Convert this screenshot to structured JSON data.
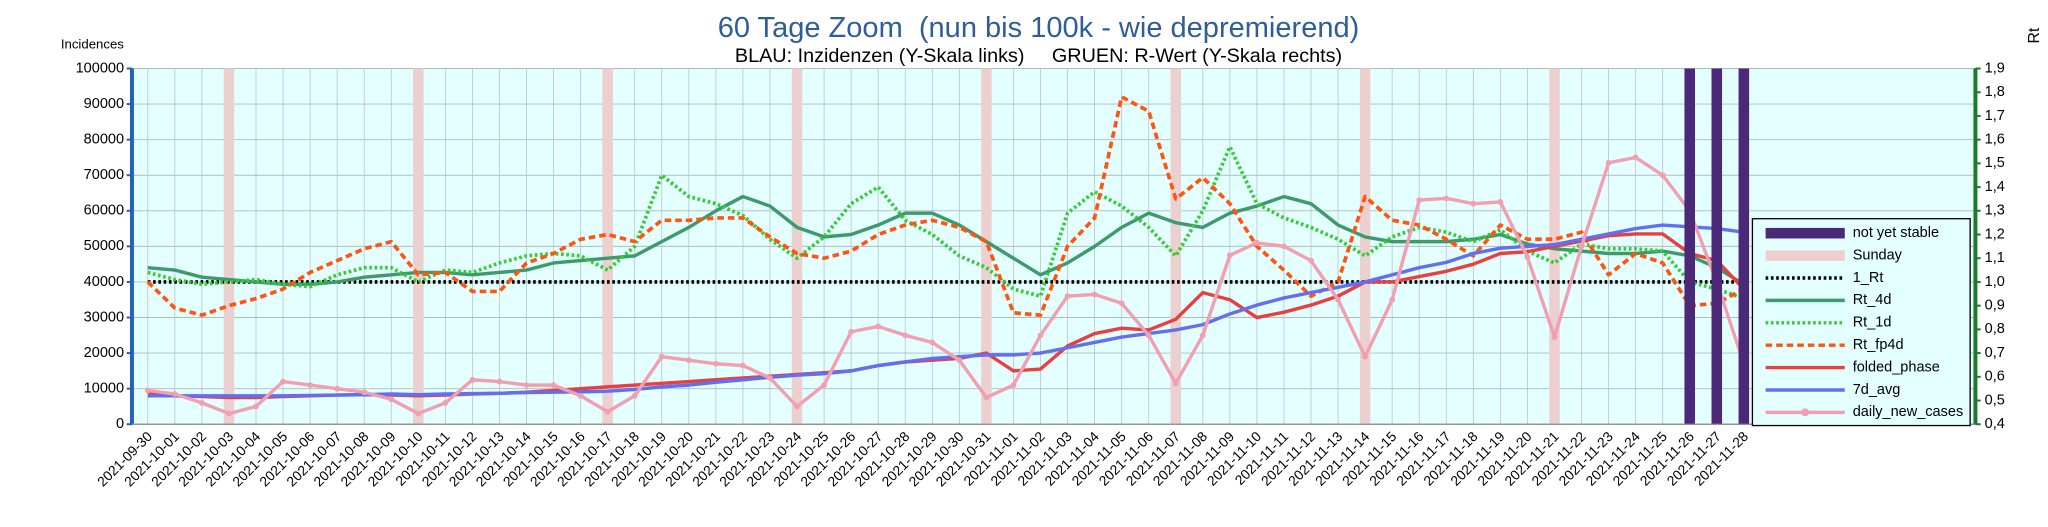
{
  "chart_data": {
    "type": "line",
    "title": "60 Tage Zoom  (nun bis 100k - wie depremierend)",
    "subtitle": "BLAU: Inzidenzen (Y-Skala links)     GRUEN: R-Wert (Y-Skala rechts)",
    "y_label": "Incidences",
    "y2_label": "Rt",
    "categories": [
      "2021-09-30",
      "2021-10-01",
      "2021-10-02",
      "2021-10-03",
      "2021-10-04",
      "2021-10-05",
      "2021-10-06",
      "2021-10-07",
      "2021-10-08",
      "2021-10-09",
      "2021-10-10",
      "2021-10-11",
      "2021-10-12",
      "2021-10-13",
      "2021-10-14",
      "2021-10-15",
      "2021-10-16",
      "2021-10-17",
      "2021-10-18",
      "2021-10-19",
      "2021-10-20",
      "2021-10-21",
      "2021-10-22",
      "2021-10-23",
      "2021-10-24",
      "2021-10-25",
      "2021-10-26",
      "2021-10-27",
      "2021-10-28",
      "2021-10-29",
      "2021-10-30",
      "2021-10-31",
      "2021-11-01",
      "2021-11-02",
      "2021-11-03",
      "2021-11-04",
      "2021-11-05",
      "2021-11-06",
      "2021-11-07",
      "2021-11-08",
      "2021-11-09",
      "2021-11-10",
      "2021-11-11",
      "2021-11-12",
      "2021-11-13",
      "2021-11-14",
      "2021-11-15",
      "2021-11-16",
      "2021-11-17",
      "2021-11-18",
      "2021-11-19",
      "2021-11-20",
      "2021-11-21",
      "2021-11-22",
      "2021-11-23",
      "2021-11-24",
      "2021-11-25",
      "2021-11-26",
      "2021-11-27",
      "2021-11-28"
    ],
    "ylim": [
      0,
      100000
    ],
    "yticks": [
      0,
      10000,
      20000,
      30000,
      40000,
      50000,
      60000,
      70000,
      80000,
      90000,
      100000
    ],
    "y2lim": [
      0.4,
      1.9
    ],
    "y2ticks": [
      {
        "value": 0.4,
        "label": "0,4"
      },
      {
        "value": 0.5,
        "label": "0,5"
      },
      {
        "value": 0.6,
        "label": "0,6"
      },
      {
        "value": 0.7,
        "label": "0,7"
      },
      {
        "value": 0.8,
        "label": "0,8"
      },
      {
        "value": 0.9,
        "label": "0,9"
      },
      {
        "value": 1.0,
        "label": "1,0"
      },
      {
        "value": 1.1,
        "label": "1,1"
      },
      {
        "value": 1.2,
        "label": "1,2"
      },
      {
        "value": 1.3,
        "label": "1,3"
      },
      {
        "value": 1.4,
        "label": "1,4"
      },
      {
        "value": 1.5,
        "label": "1,5"
      },
      {
        "value": 1.6,
        "label": "1,6"
      },
      {
        "value": 1.7,
        "label": "1,7"
      },
      {
        "value": 1.8,
        "label": "1,8"
      },
      {
        "value": 1.9,
        "label": "1,9"
      }
    ],
    "grid": true,
    "legend": "right",
    "series": [
      {
        "name": "not yet stable",
        "type": "bar",
        "color": "#4b2878",
        "values": [
          null,
          null,
          null,
          null,
          null,
          null,
          null,
          null,
          null,
          null,
          null,
          null,
          null,
          null,
          null,
          null,
          null,
          null,
          null,
          null,
          null,
          null,
          null,
          null,
          null,
          null,
          null,
          null,
          null,
          null,
          null,
          null,
          null,
          null,
          null,
          null,
          null,
          null,
          null,
          null,
          null,
          null,
          null,
          null,
          null,
          null,
          null,
          null,
          null,
          null,
          null,
          null,
          null,
          null,
          null,
          null,
          null,
          100000,
          100000,
          100000
        ]
      },
      {
        "name": "Sunday",
        "type": "bar",
        "color": "#ecd0d0",
        "values": [
          null,
          null,
          null,
          100000,
          null,
          null,
          null,
          null,
          null,
          null,
          100000,
          null,
          null,
          null,
          null,
          null,
          null,
          100000,
          null,
          null,
          null,
          null,
          null,
          null,
          100000,
          null,
          null,
          null,
          null,
          null,
          null,
          100000,
          null,
          null,
          null,
          null,
          null,
          null,
          100000,
          null,
          null,
          null,
          null,
          null,
          null,
          100000,
          null,
          null,
          null,
          null,
          null,
          null,
          100000,
          null,
          null,
          null,
          null,
          null,
          null,
          100000
        ]
      },
      {
        "name": "1_Rt",
        "type": "line",
        "axis": "y2",
        "color": "#000000",
        "style": "dotted",
        "values": [
          1,
          1,
          1,
          1,
          1,
          1,
          1,
          1,
          1,
          1,
          1,
          1,
          1,
          1,
          1,
          1,
          1,
          1,
          1,
          1,
          1,
          1,
          1,
          1,
          1,
          1,
          1,
          1,
          1,
          1,
          1,
          1,
          1,
          1,
          1,
          1,
          1,
          1,
          1,
          1,
          1,
          1,
          1,
          1,
          1,
          1,
          1,
          1,
          1,
          1,
          1,
          1,
          1,
          1,
          1,
          1,
          1,
          1,
          1,
          1
        ]
      },
      {
        "name": "Rt_4d",
        "type": "line",
        "axis": "y2",
        "color": "#3d9a6c",
        "style": "solid",
        "values": [
          1.06,
          1.05,
          1.02,
          1.01,
          1.0,
          0.99,
          0.99,
          1.0,
          1.02,
          1.03,
          1.04,
          1.04,
          1.03,
          1.04,
          1.05,
          1.08,
          1.09,
          1.1,
          1.11,
          1.17,
          1.23,
          1.3,
          1.36,
          1.32,
          1.23,
          1.19,
          1.2,
          1.24,
          1.29,
          1.29,
          1.24,
          1.17,
          1.1,
          1.03,
          1.08,
          1.15,
          1.23,
          1.29,
          1.25,
          1.23,
          1.29,
          1.32,
          1.36,
          1.33,
          1.24,
          1.19,
          1.17,
          1.17,
          1.17,
          1.18,
          1.2,
          1.16,
          1.14,
          1.13,
          1.12,
          1.12,
          1.13,
          1.11,
          1.06,
          0.99
        ]
      },
      {
        "name": "Rt_1d",
        "type": "line",
        "axis": "y2",
        "color": "#33cc33",
        "style": "dotted",
        "values": [
          1.04,
          1.01,
          0.99,
          1.0,
          1.01,
          0.99,
          0.98,
          1.03,
          1.06,
          1.06,
          1.0,
          1.05,
          1.04,
          1.08,
          1.11,
          1.12,
          1.11,
          1.05,
          1.15,
          1.45,
          1.36,
          1.33,
          1.28,
          1.18,
          1.1,
          1.19,
          1.33,
          1.4,
          1.26,
          1.2,
          1.11,
          1.06,
          0.97,
          0.94,
          1.29,
          1.38,
          1.32,
          1.23,
          1.11,
          1.3,
          1.57,
          1.33,
          1.27,
          1.23,
          1.18,
          1.11,
          1.19,
          1.23,
          1.21,
          1.17,
          1.22,
          1.13,
          1.08,
          1.16,
          1.14,
          1.14,
          1.13,
          1.0,
          0.97,
          0.93
        ]
      },
      {
        "name": "Rt_fp4d",
        "type": "line",
        "axis": "y2",
        "color": "#ff5511",
        "style": "dashed",
        "values": [
          1.0,
          0.89,
          0.86,
          0.9,
          0.93,
          0.97,
          1.04,
          1.09,
          1.14,
          1.17,
          1.03,
          1.04,
          0.96,
          0.96,
          1.08,
          1.12,
          1.18,
          1.2,
          1.17,
          1.26,
          1.26,
          1.27,
          1.27,
          1.19,
          1.12,
          1.1,
          1.13,
          1.2,
          1.24,
          1.26,
          1.23,
          1.17,
          0.87,
          0.86,
          1.15,
          1.27,
          1.78,
          1.72,
          1.35,
          1.44,
          1.33,
          1.15,
          1.05,
          0.94,
          1.0,
          1.36,
          1.26,
          1.24,
          1.18,
          1.11,
          1.24,
          1.18,
          1.18,
          1.21,
          1.03,
          1.12,
          1.08,
          0.9,
          0.91,
          0.97
        ]
      },
      {
        "name": "folded_phase",
        "type": "line",
        "color": "#e84040",
        "style": "solid",
        "values": [
          8500,
          8000,
          7800,
          7500,
          7500,
          7800,
          8000,
          8200,
          8300,
          8200,
          8000,
          8200,
          8500,
          8700,
          9000,
          9500,
          10000,
          10500,
          11000,
          11500,
          12000,
          12500,
          13000,
          13500,
          14000,
          14500,
          15000,
          16500,
          17500,
          18000,
          18500,
          20000,
          15000,
          15500,
          22000,
          25500,
          27000,
          26500,
          29500,
          37000,
          35000,
          30000,
          31500,
          33500,
          36000,
          40000,
          40000,
          41500,
          43000,
          45000,
          48000,
          48500,
          50000,
          51500,
          53000,
          53500,
          53500,
          48000,
          46000,
          38000
        ]
      },
      {
        "name": "7d_avg",
        "type": "line",
        "color": "#6070f0",
        "style": "solid",
        "values": [
          8000,
          8000,
          8000,
          8000,
          8000,
          8000,
          8100,
          8200,
          8300,
          8500,
          8300,
          8500,
          8600,
          8700,
          8900,
          9000,
          9100,
          9300,
          9800,
          10500,
          11000,
          11800,
          12500,
          13200,
          13800,
          14200,
          15000,
          16500,
          17500,
          18500,
          19000,
          19500,
          19500,
          20000,
          21500,
          23000,
          24500,
          25500,
          26500,
          28000,
          31000,
          33500,
          35500,
          37000,
          38500,
          40000,
          42000,
          44000,
          45500,
          48000,
          49500,
          50000,
          50500,
          52000,
          53500,
          55000,
          56000,
          55500,
          55000,
          54000
        ]
      },
      {
        "name": "daily_new_cases",
        "type": "line",
        "color": "#f0a0b0",
        "style": "solid",
        "marker": "circle",
        "values": [
          9500,
          8500,
          6000,
          3000,
          5000,
          12000,
          11000,
          10000,
          9000,
          7000,
          3000,
          6000,
          12500,
          12000,
          11000,
          11000,
          8000,
          3500,
          8000,
          19000,
          18000,
          17000,
          16500,
          13000,
          5000,
          11000,
          26000,
          27500,
          25000,
          23000,
          18000,
          7500,
          11000,
          25000,
          36000,
          36500,
          34000,
          25000,
          11500,
          25000,
          47500,
          51000,
          50000,
          46000,
          35000,
          19000,
          35000,
          63000,
          63500,
          62000,
          62500,
          47000,
          24500,
          50000,
          73500,
          75000,
          70000,
          60000,
          40000,
          17000
        ]
      }
    ]
  }
}
